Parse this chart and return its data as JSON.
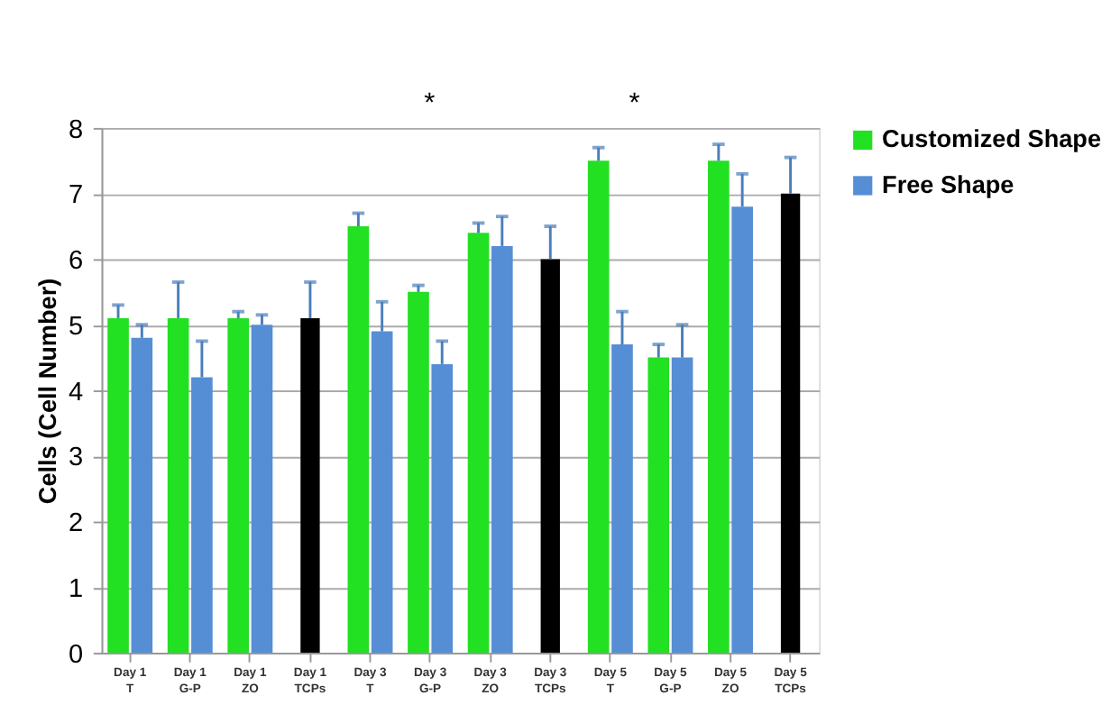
{
  "chart_data": {
    "type": "bar",
    "ylabel": "Cells (Cell Number)",
    "categories": [
      "Day 1 T",
      "Day 1 G-P",
      "Day 1 ZO",
      "Day 1 TCPs",
      "Day 3 T",
      "Day 3 G-P",
      "Day 3 ZO",
      "Day 3 TCPs",
      "Day 5 T",
      "Day 5 G-P",
      "Day 5 ZO",
      "Day 5 TCPs"
    ],
    "series": [
      {
        "name": "Customized Shape",
        "color": "#22e022",
        "values": [
          5.1,
          5.1,
          5.1,
          null,
          6.5,
          5.5,
          6.4,
          null,
          7.5,
          4.5,
          7.5,
          null
        ],
        "errors": [
          [
            5.1,
            5.3
          ],
          [
            5.1,
            5.65
          ],
          [
            5.1,
            5.2
          ],
          null,
          [
            6.5,
            6.7
          ],
          [
            5.5,
            5.6
          ],
          [
            6.4,
            6.55
          ],
          null,
          [
            7.5,
            7.7
          ],
          [
            4.5,
            4.7
          ],
          [
            7.5,
            7.75
          ],
          null
        ]
      },
      {
        "name": "Free Shape",
        "color": "#558ed5",
        "values": [
          4.8,
          4.2,
          5.0,
          null,
          4.9,
          4.4,
          6.2,
          null,
          4.7,
          4.5,
          6.8,
          null
        ],
        "errors": [
          [
            4.8,
            5.0
          ],
          [
            4.2,
            4.75
          ],
          [
            5.0,
            5.15
          ],
          null,
          [
            4.9,
            5.35
          ],
          [
            4.4,
            4.75
          ],
          [
            6.2,
            6.65
          ],
          null,
          [
            4.7,
            5.2
          ],
          [
            4.5,
            5.0
          ],
          [
            6.8,
            7.3
          ],
          null
        ]
      },
      {
        "color": "#000000",
        "values": [
          null,
          null,
          null,
          5.1,
          null,
          null,
          null,
          6.0,
          null,
          null,
          null,
          7.0
        ],
        "errors": [
          null,
          null,
          null,
          [
            5.1,
            5.65
          ],
          null,
          null,
          null,
          [
            6.0,
            6.5
          ],
          null,
          null,
          null,
          [
            7.0,
            7.55
          ]
        ]
      }
    ],
    "ylim": [
      0,
      8
    ],
    "yticks": [
      0,
      1,
      2,
      3,
      4,
      5,
      6,
      7,
      8
    ],
    "grid": "y",
    "legend": "right",
    "annotations": [
      "*",
      "*"
    ]
  }
}
